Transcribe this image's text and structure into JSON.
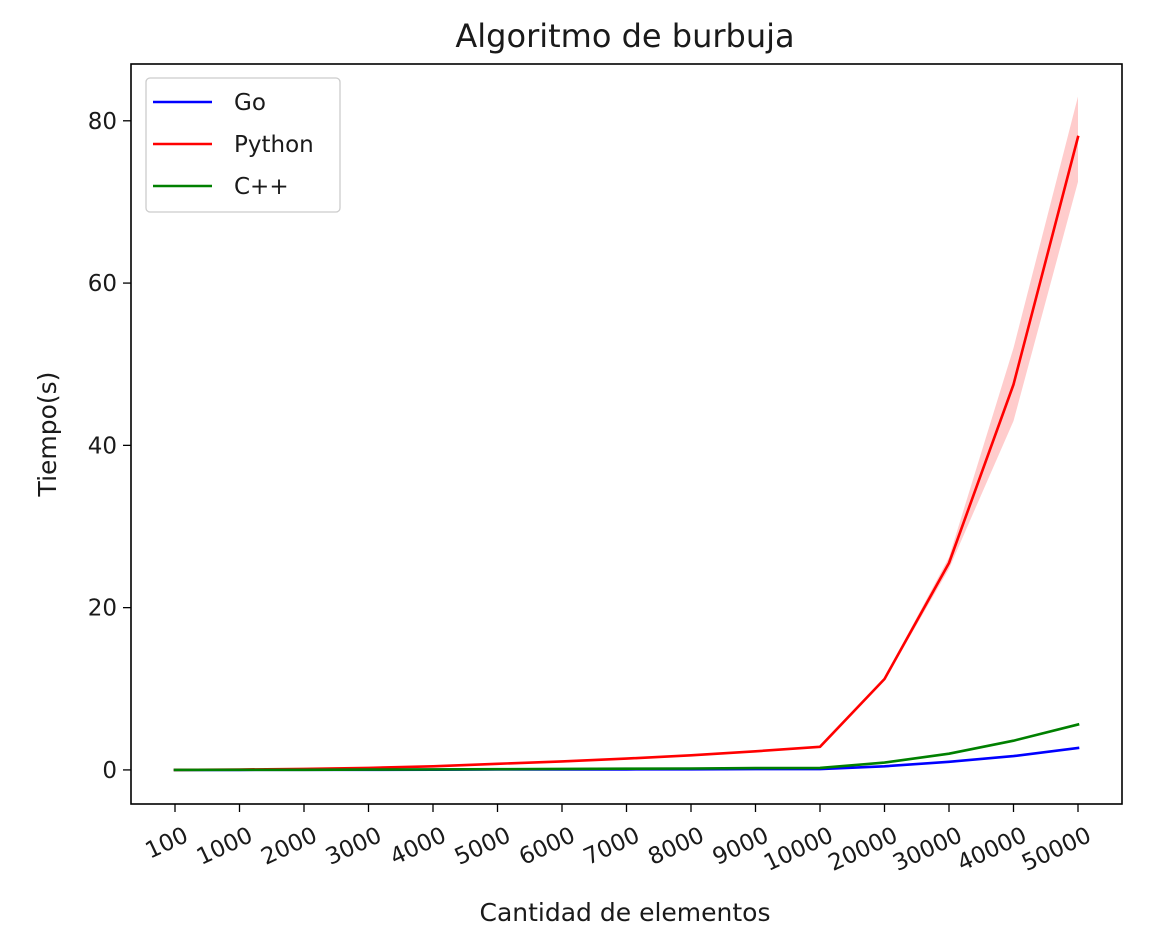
{
  "chart_data": {
    "type": "line",
    "title": "Algoritmo de burbuja",
    "xlabel": "Cantidad de elementos",
    "ylabel": "Tiempo(s)",
    "categories": [
      "100",
      "1000",
      "2000",
      "3000",
      "4000",
      "5000",
      "6000",
      "7000",
      "8000",
      "9000",
      "10000",
      "20000",
      "30000",
      "40000",
      "50000"
    ],
    "ylim": [
      -4.2,
      87.0
    ],
    "yticks": [
      0,
      20,
      40,
      60,
      80
    ],
    "grid": false,
    "legend_position": "upper left",
    "series": [
      {
        "name": "Go",
        "color": "#0000ff",
        "values": [
          0.0,
          0.0,
          0.01,
          0.02,
          0.03,
          0.05,
          0.06,
          0.07,
          0.08,
          0.1,
          0.1,
          0.45,
          1.0,
          1.7,
          2.7
        ]
      },
      {
        "name": "Python",
        "color": "#ff0000",
        "values": [
          0.0,
          0.05,
          0.12,
          0.25,
          0.45,
          0.75,
          1.05,
          1.4,
          1.8,
          2.3,
          2.85,
          11.2,
          25.5,
          47.5,
          78.0
        ],
        "band_lower": [
          0.0,
          0.05,
          0.12,
          0.25,
          0.45,
          0.75,
          1.05,
          1.4,
          1.8,
          2.3,
          2.8,
          11.0,
          24.8,
          43.0,
          72.5
        ],
        "band_upper": [
          0.0,
          0.05,
          0.12,
          0.25,
          0.45,
          0.75,
          1.05,
          1.4,
          1.8,
          2.3,
          2.9,
          11.4,
          26.2,
          52.0,
          83.0
        ],
        "band_color": "#ff0000"
      },
      {
        "name": "C++",
        "color": "#008000",
        "values": [
          0.0,
          0.01,
          0.02,
          0.04,
          0.06,
          0.09,
          0.12,
          0.15,
          0.18,
          0.22,
          0.25,
          0.9,
          2.0,
          3.6,
          5.6
        ]
      }
    ]
  }
}
